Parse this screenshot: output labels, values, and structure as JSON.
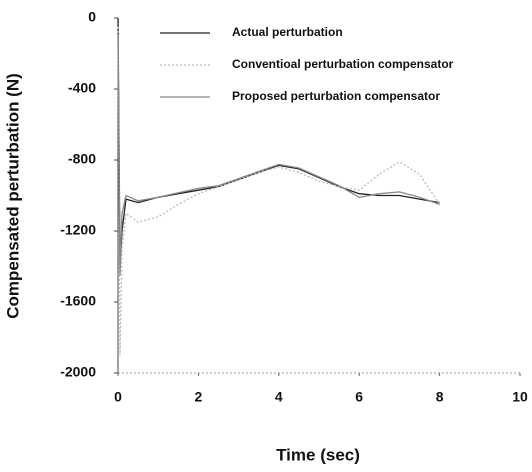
{
  "chart_data": {
    "type": "line",
    "xlabel": "Time (sec)",
    "ylabel": "Compensated perturbation (N)",
    "x": [
      0,
      0.05,
      0.1,
      0.2,
      0.5,
      1,
      1.5,
      2,
      2.5,
      3,
      3.5,
      4,
      4.5,
      5,
      5.5,
      6,
      6.5,
      7,
      7.5,
      8
    ],
    "series": [
      {
        "name": "Actual perturbation",
        "color": "#222222",
        "dash": "none",
        "values": [
          0,
          -1400,
          -1200,
          -1020,
          -1040,
          -1010,
          -990,
          -970,
          -950,
          -910,
          -870,
          -830,
          -850,
          -900,
          -950,
          -990,
          -1000,
          -1000,
          -1020,
          -1040
        ]
      },
      {
        "name": "Conventioal perturbation compensator",
        "color": "#bbbbbb",
        "dash": "2 2",
        "values": [
          -50,
          -1900,
          -1300,
          -1100,
          -1150,
          -1120,
          -1050,
          -990,
          -950,
          -910,
          -870,
          -840,
          -870,
          -920,
          -950,
          -970,
          -880,
          -810,
          -880,
          -1050
        ]
      },
      {
        "name": "Proposed perturbation compensator",
        "color": "#888888",
        "dash": "none",
        "values": [
          -100,
          -1450,
          -1100,
          -1000,
          -1030,
          -1010,
          -985,
          -960,
          -945,
          -905,
          -865,
          -825,
          -845,
          -895,
          -945,
          -1010,
          -990,
          -980,
          -1010,
          -1050
        ]
      }
    ],
    "xlim": [
      0,
      10
    ],
    "xticks": [
      0,
      2,
      4,
      6,
      8,
      10
    ],
    "ylim": [
      -2000,
      0
    ],
    "yticks": [
      0,
      -400,
      -800,
      -1200,
      -1600,
      -2000
    ],
    "legend": "top-right"
  }
}
